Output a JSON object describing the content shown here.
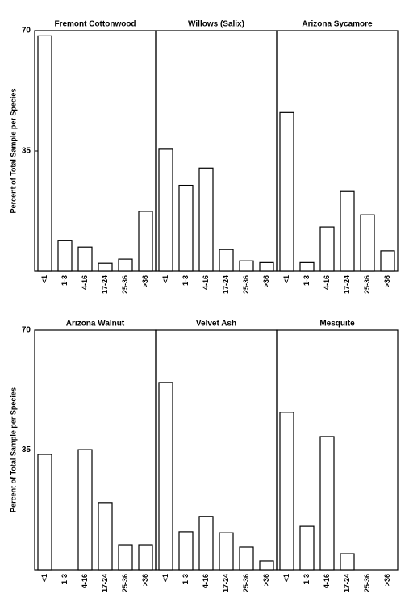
{
  "chart_data": [
    {
      "type": "bar",
      "title": "Fremont Cottonwood",
      "ylabel": "Percent of Total Sample per Species",
      "categories": [
        "<1",
        "1-3",
        "4-16",
        "17-24",
        "25-36",
        ">36"
      ],
      "values": [
        68.5,
        9,
        7,
        2.3,
        3.5,
        17.4
      ],
      "ylim": [
        0,
        70
      ],
      "yticks": [
        35,
        70
      ],
      "color": "#ffffff"
    },
    {
      "type": "bar",
      "title": "Willows (Salix)",
      "categories": [
        "<1",
        "1-3",
        "4-16",
        "17-24",
        "25-36",
        ">36"
      ],
      "values": [
        35.5,
        25,
        30,
        6.3,
        3,
        2.5
      ],
      "ylim": [
        0,
        70
      ],
      "color": "#ffffff"
    },
    {
      "type": "bar",
      "title": "Arizona Sycamore",
      "categories": [
        "<1",
        "1-3",
        "4-16",
        "17-24",
        "25-36",
        ">36"
      ],
      "values": [
        46.2,
        2.5,
        12.9,
        23.2,
        16.4,
        5.9
      ],
      "ylim": [
        0,
        70
      ],
      "color": "#ffffff"
    },
    {
      "type": "bar",
      "title": "Arizona Walnut",
      "ylabel": "Percent of Total Sample per Species",
      "categories": [
        "<1",
        "1-3",
        "4-16",
        "17-24",
        "25-36",
        ">36"
      ],
      "values": [
        33.7,
        0,
        35.1,
        19.6,
        7.3,
        7.3
      ],
      "ylim": [
        0,
        70
      ],
      "yticks": [
        35,
        70
      ],
      "color": "#ffffff"
    },
    {
      "type": "bar",
      "title": "Velvet Ash",
      "categories": [
        "<1",
        "1-3",
        "4-16",
        "17-24",
        "25-36",
        ">36"
      ],
      "values": [
        54.7,
        11.1,
        15.6,
        10.8,
        6.6,
        2.6
      ],
      "ylim": [
        0,
        70
      ],
      "color": "#ffffff"
    },
    {
      "type": "bar",
      "title": "Mesquite",
      "categories": [
        "<1",
        "1-3",
        "4-16",
        "17-24",
        "25-36",
        ">36"
      ],
      "values": [
        46,
        12.7,
        38.9,
        4.7,
        0,
        0
      ],
      "ylim": [
        0,
        70
      ],
      "color": "#ffffff"
    }
  ]
}
